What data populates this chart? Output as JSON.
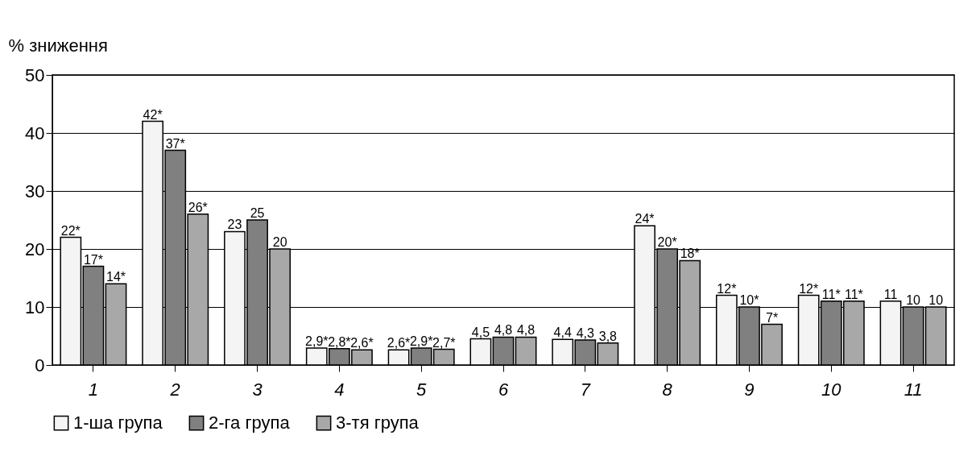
{
  "chart_data": {
    "type": "bar",
    "ylabel": "% зниження",
    "categories": [
      "1",
      "2",
      "3",
      "4",
      "5",
      "6",
      "7",
      "8",
      "9",
      "10",
      "11"
    ],
    "series": [
      {
        "name": "1-ша група",
        "color": "#f4f4f4",
        "values": [
          22,
          42,
          23,
          2.9,
          2.6,
          4.5,
          4.4,
          24,
          12,
          12,
          11
        ],
        "value_labels": [
          "22*",
          "42*",
          "23",
          "2,9*",
          "2,6*",
          "4,5",
          "4,4",
          "24*",
          "12*",
          "12*",
          "11"
        ]
      },
      {
        "name": "2-га група",
        "color": "#808080",
        "values": [
          17,
          37,
          25,
          2.8,
          2.9,
          4.8,
          4.3,
          20,
          10,
          11,
          10
        ],
        "value_labels": [
          "17*",
          "37*",
          "25",
          "2,8*",
          "2,9*",
          "4,8",
          "4,3",
          "20*",
          "10*",
          "11*",
          "10"
        ]
      },
      {
        "name": "3-тя група",
        "color": "#a8a8a8",
        "values": [
          14,
          26,
          20,
          2.6,
          2.7,
          4.8,
          3.8,
          18,
          7,
          11,
          10
        ],
        "value_labels": [
          "14*",
          "26*",
          "20",
          "2,6*",
          "2,7*",
          "4,8",
          "3,8",
          "18*",
          "7*",
          "11*",
          "10"
        ]
      }
    ],
    "ylim": [
      0,
      50
    ],
    "yticks": [
      0,
      10,
      20,
      30,
      40,
      50
    ],
    "grid": "y",
    "legend": "bottom"
  }
}
